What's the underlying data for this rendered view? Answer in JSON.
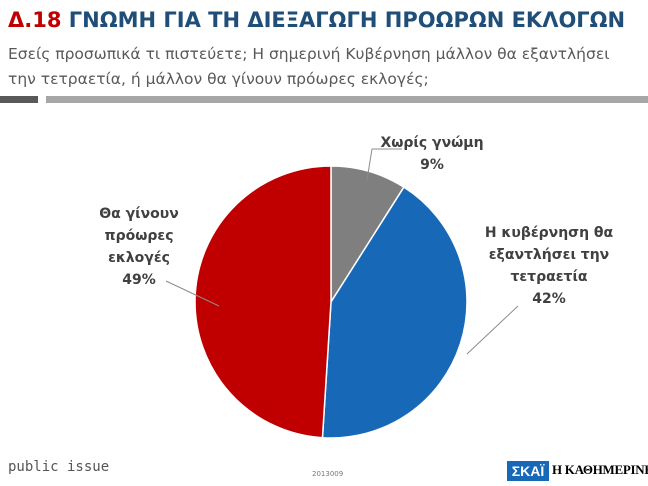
{
  "header": {
    "number": "Δ.18",
    "title": "ΓΝΩΜΗ ΓΙΑ ΤΗ ΔΙΕΞΑΓΩΓΗ ΠΡΟΩΡΩΝ ΕΚΛΟΓΩΝ",
    "subtitle": "Εσείς προσωπικά τι πιστεύετε; Η σημερινή Κυβέρνηση μάλλον θα εξαντλήσει την τετραετία, ή μάλλον θα γίνουν πρόωρες εκλογές;"
  },
  "chart_data": {
    "type": "pie",
    "title": "ΓΝΩΜΗ ΓΙΑ ΤΗ ΔΙΕΞΑΓΩΓΗ ΠΡΟΩΡΩΝ ΕΚΛΟΓΩΝ",
    "slices": [
      {
        "label": "Χωρίς γνώμη",
        "value": 9,
        "display": "9%",
        "color": "#7f7f7f",
        "lines": [
          "Χωρίς γνώμη",
          "9%"
        ]
      },
      {
        "label": "Η κυβέρνηση θα εξαντλήσει την τετραετία",
        "value": 42,
        "display": "42%",
        "color": "#1769b8",
        "lines": [
          "Η κυβέρνηση θα",
          "εξαντλήσει την",
          "τετραετία",
          "42%"
        ]
      },
      {
        "label": "Θα γίνουν πρόωρες εκλογές",
        "value": 49,
        "display": "49%",
        "color": "#c00000",
        "lines": [
          "Θα γίνουν",
          "πρόωρες",
          "εκλογές",
          "49%"
        ]
      }
    ],
    "start_angle_deg": 0,
    "direction": "clockwise",
    "legend": "none"
  },
  "footer": {
    "source": "public issue",
    "code": "2013009",
    "logo_left": "ΣΚΑΪ",
    "logo_right": "Η ΚΑΘΗΜΕΡΙΝΗ"
  }
}
